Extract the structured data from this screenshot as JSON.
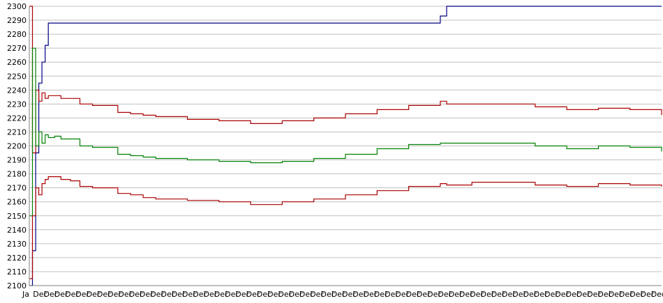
{
  "chart_data": {
    "type": "line",
    "title": "",
    "xlabel": "",
    "ylabel": "",
    "ylim": [
      2100,
      2300
    ],
    "yticks": [
      2100,
      2110,
      2120,
      2130,
      2140,
      2150,
      2160,
      2170,
      2180,
      2190,
      2200,
      2210,
      2220,
      2230,
      2240,
      2250,
      2260,
      2270,
      2280,
      2290,
      2300
    ],
    "grid": true,
    "legend": "none",
    "x_tick_first": "Ja",
    "x_tick_text": "Dec",
    "x_tick_count": 60,
    "x": [
      0,
      0.005,
      0.01,
      0.015,
      0.02,
      0.025,
      0.03,
      0.04,
      0.05,
      0.065,
      0.08,
      0.1,
      0.12,
      0.14,
      0.16,
      0.18,
      0.2,
      0.25,
      0.3,
      0.35,
      0.4,
      0.45,
      0.5,
      0.55,
      0.6,
      0.65,
      0.66,
      0.7,
      0.75,
      0.8,
      0.85,
      0.9,
      0.95,
      1.0
    ],
    "series": [
      {
        "color": "#000080",
        "values": [
          2100,
          2125,
          2195,
          2245,
          2260,
          2272,
          2288,
          2288,
          2288,
          2288,
          2288,
          2288,
          2288,
          2288,
          2288,
          2288,
          2288,
          2288,
          2288,
          2288,
          2288,
          2288,
          2288,
          2288,
          2288,
          2293,
          2300,
          2300,
          2300,
          2300,
          2300,
          2300,
          2300,
          2300
        ]
      },
      {
        "color": "#aa0000",
        "values": [
          2300,
          2195,
          2240,
          2232,
          2238,
          2234,
          2236,
          2236,
          2234,
          2234,
          2230,
          2229,
          2229,
          2224,
          2223,
          2222,
          2221,
          2219,
          2218,
          2216,
          2218,
          2220,
          2223,
          2226,
          2229,
          2232,
          2230,
          2230,
          2230,
          2228,
          2226,
          2227,
          2226,
          2222
        ]
      },
      {
        "color": "#008000",
        "values": [
          2150,
          2270,
          2200,
          2210,
          2202,
          2208,
          2206,
          2207,
          2205,
          2205,
          2200,
          2199,
          2199,
          2194,
          2193,
          2192,
          2191,
          2190,
          2189,
          2188,
          2189,
          2191,
          2194,
          2198,
          2201,
          2202,
          2202,
          2202,
          2202,
          2200,
          2198,
          2200,
          2199,
          2196
        ]
      },
      {
        "color": "#aa0000",
        "values": [
          2105,
          2150,
          2170,
          2165,
          2173,
          2176,
          2178,
          2178,
          2176,
          2175,
          2171,
          2170,
          2170,
          2166,
          2165,
          2163,
          2162,
          2161,
          2160,
          2158,
          2160,
          2162,
          2165,
          2168,
          2171,
          2173,
          2172,
          2174,
          2174,
          2172,
          2171,
          2173,
          2172,
          2171
        ]
      }
    ]
  }
}
